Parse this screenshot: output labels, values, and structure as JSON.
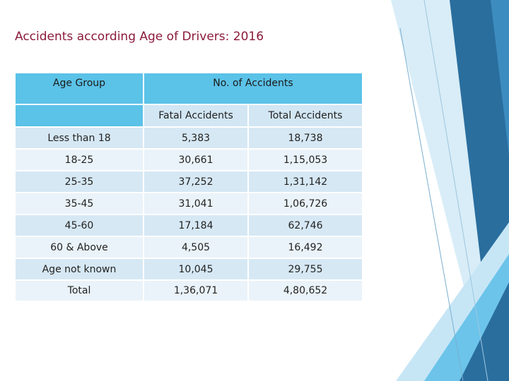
{
  "slide": {
    "title": "Accidents according Age of Drivers: 2016"
  },
  "table": {
    "header": {
      "age_group": "Age Group",
      "accidents": "No. of Accidents"
    },
    "subheader": {
      "fatal": "Fatal Accidents",
      "total": "Total Accidents"
    },
    "rows": [
      {
        "group": "Less than 18",
        "fatal": "5,383",
        "total": "18,738"
      },
      {
        "group": "18-25",
        "fatal": "30,661",
        "total": "1,15,053"
      },
      {
        "group": "25-35",
        "fatal": "37,252",
        "total": "1,31,142"
      },
      {
        "group": "35-45",
        "fatal": "31,041",
        "total": "1,06,726"
      },
      {
        "group": "45-60",
        "fatal": "17,184",
        "total": "62,746"
      },
      {
        "group": "60 & Above",
        "fatal": "4,505",
        "total": "16,492"
      },
      {
        "group": "Age not known",
        "fatal": "10,045",
        "total": "29,755"
      },
      {
        "group": "Total",
        "fatal": "1,36,071",
        "total": "4,80,652"
      }
    ]
  },
  "theme": {
    "title_color": "#8b1a3a",
    "header_color": "#5bc2e8",
    "row_odd": "#d6e8f4",
    "row_even": "#eaf3f9",
    "accent_dark": "#2a6e9e",
    "accent_light": "#6cc4ea"
  }
}
